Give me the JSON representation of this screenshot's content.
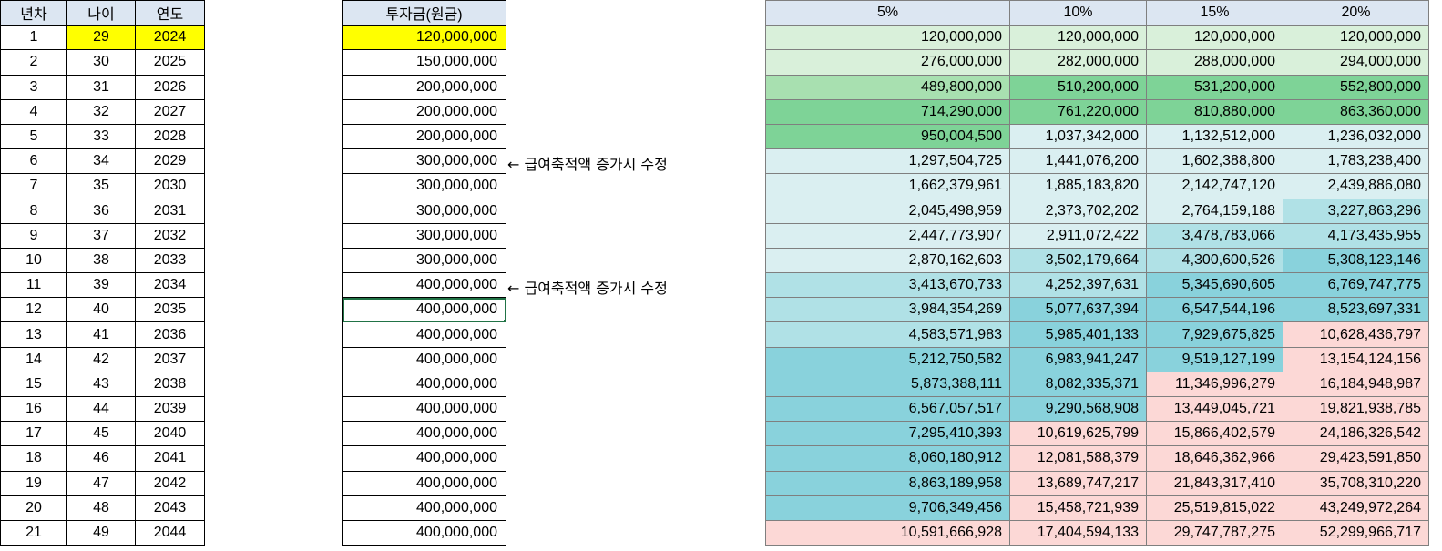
{
  "table_a": {
    "headers": [
      "년차",
      "나이",
      "연도"
    ],
    "rows": [
      [
        "1",
        "29",
        "2024"
      ],
      [
        "2",
        "30",
        "2025"
      ],
      [
        "3",
        "31",
        "2026"
      ],
      [
        "4",
        "32",
        "2027"
      ],
      [
        "5",
        "33",
        "2028"
      ],
      [
        "6",
        "34",
        "2029"
      ],
      [
        "7",
        "35",
        "2030"
      ],
      [
        "8",
        "36",
        "2031"
      ],
      [
        "9",
        "37",
        "2032"
      ],
      [
        "10",
        "38",
        "2033"
      ],
      [
        "11",
        "39",
        "2034"
      ],
      [
        "12",
        "40",
        "2035"
      ],
      [
        "13",
        "41",
        "2036"
      ],
      [
        "14",
        "42",
        "2037"
      ],
      [
        "15",
        "43",
        "2038"
      ],
      [
        "16",
        "44",
        "2039"
      ],
      [
        "17",
        "45",
        "2040"
      ],
      [
        "18",
        "46",
        "2041"
      ],
      [
        "19",
        "47",
        "2042"
      ],
      [
        "20",
        "48",
        "2043"
      ],
      [
        "21",
        "49",
        "2044"
      ]
    ]
  },
  "table_b": {
    "header": "투자금(원금)",
    "values": [
      "120,000,000",
      "150,000,000",
      "200,000,000",
      "200,000,000",
      "200,000,000",
      "300,000,000",
      "300,000,000",
      "300,000,000",
      "300,000,000",
      "300,000,000",
      "400,000,000",
      "400,000,000",
      "400,000,000",
      "400,000,000",
      "400,000,000",
      "400,000,000",
      "400,000,000",
      "400,000,000",
      "400,000,000",
      "400,000,000",
      "400,000,000"
    ]
  },
  "notes": [
    {
      "row": 6,
      "text": "← 급여축적액 증가시 수정"
    },
    {
      "row": 11,
      "text": "← 급여축적액 증가시 수정"
    }
  ],
  "table_c": {
    "headers": [
      "5%",
      "10%",
      "15%",
      "20%"
    ],
    "rows": [
      [
        "120,000,000",
        "120,000,000",
        "120,000,000",
        "120,000,000"
      ],
      [
        "276,000,000",
        "282,000,000",
        "288,000,000",
        "294,000,000"
      ],
      [
        "489,800,000",
        "510,200,000",
        "531,200,000",
        "552,800,000"
      ],
      [
        "714,290,000",
        "761,220,000",
        "810,880,000",
        "863,360,000"
      ],
      [
        "950,004,500",
        "1,037,342,000",
        "1,132,512,000",
        "1,236,032,000"
      ],
      [
        "1,297,504,725",
        "1,441,076,200",
        "1,602,388,800",
        "1,783,238,400"
      ],
      [
        "1,662,379,961",
        "1,885,183,820",
        "2,142,747,120",
        "2,439,886,080"
      ],
      [
        "2,045,498,959",
        "2,373,702,202",
        "2,764,159,188",
        "3,227,863,296"
      ],
      [
        "2,447,773,907",
        "2,911,072,422",
        "3,478,783,066",
        "4,173,435,955"
      ],
      [
        "2,870,162,603",
        "3,502,179,664",
        "4,300,600,526",
        "5,308,123,146"
      ],
      [
        "3,413,670,733",
        "4,252,397,631",
        "5,345,690,605",
        "6,769,747,775"
      ],
      [
        "3,984,354,269",
        "5,077,637,394",
        "6,547,544,196",
        "8,523,697,331"
      ],
      [
        "4,583,571,983",
        "5,985,401,133",
        "7,929,675,825",
        "10,628,436,797"
      ],
      [
        "5,212,750,582",
        "6,983,941,247",
        "9,519,127,199",
        "13,154,124,156"
      ],
      [
        "5,873,388,111",
        "8,082,335,371",
        "11,346,996,279",
        "16,184,948,987"
      ],
      [
        "6,567,057,517",
        "9,290,568,908",
        "13,449,045,721",
        "19,821,938,785"
      ],
      [
        "7,295,410,393",
        "10,619,625,799",
        "15,866,402,579",
        "24,186,326,542"
      ],
      [
        "8,060,180,912",
        "12,081,588,379",
        "18,646,362,966",
        "29,423,591,850"
      ],
      [
        "8,863,189,958",
        "13,689,747,217",
        "21,843,317,410",
        "35,708,310,220"
      ],
      [
        "9,706,349,456",
        "15,458,721,939",
        "25,519,815,022",
        "43,249,972,264"
      ],
      [
        "10,591,666,928",
        "17,404,594,133",
        "29,747,787,275",
        "52,299,966,717"
      ]
    ],
    "colors": [
      [
        "g1",
        "g1",
        "g1",
        "g1"
      ],
      [
        "g1",
        "g1",
        "g1",
        "g1"
      ],
      [
        "g2",
        "g3",
        "g3",
        "g3"
      ],
      [
        "g3",
        "g3",
        "g3",
        "g3"
      ],
      [
        "g3",
        "c1",
        "c1",
        "c1"
      ],
      [
        "c1",
        "c1",
        "c1",
        "c1"
      ],
      [
        "c1",
        "c1",
        "c1",
        "c1"
      ],
      [
        "c1",
        "c1",
        "c1",
        "c2"
      ],
      [
        "c1",
        "c1",
        "c2",
        "c2"
      ],
      [
        "c1",
        "c2",
        "c2",
        "c3"
      ],
      [
        "c2",
        "c2",
        "c3",
        "c3"
      ],
      [
        "c2",
        "c3",
        "c3",
        "c3"
      ],
      [
        "c2",
        "c3",
        "c3",
        "p"
      ],
      [
        "c3",
        "c3",
        "c3",
        "p"
      ],
      [
        "c3",
        "c3",
        "p",
        "p"
      ],
      [
        "c3",
        "c3",
        "p",
        "p"
      ],
      [
        "c3",
        "p",
        "p",
        "p"
      ],
      [
        "c3",
        "p",
        "p",
        "p"
      ],
      [
        "c3",
        "p",
        "p",
        "p"
      ],
      [
        "c3",
        "p",
        "p",
        "p"
      ],
      [
        "p",
        "p",
        "p",
        "p"
      ]
    ],
    "palette": {
      "g1": "#d9f0da",
      "g2": "#a8e0b0",
      "g3": "#7ed397",
      "c1": "#daeff1",
      "c2": "#b0e1e6",
      "c3": "#89d2dc",
      "p": "#fcd8d6"
    }
  },
  "highlight_color": "#ffff00",
  "selection_color": "#217346"
}
